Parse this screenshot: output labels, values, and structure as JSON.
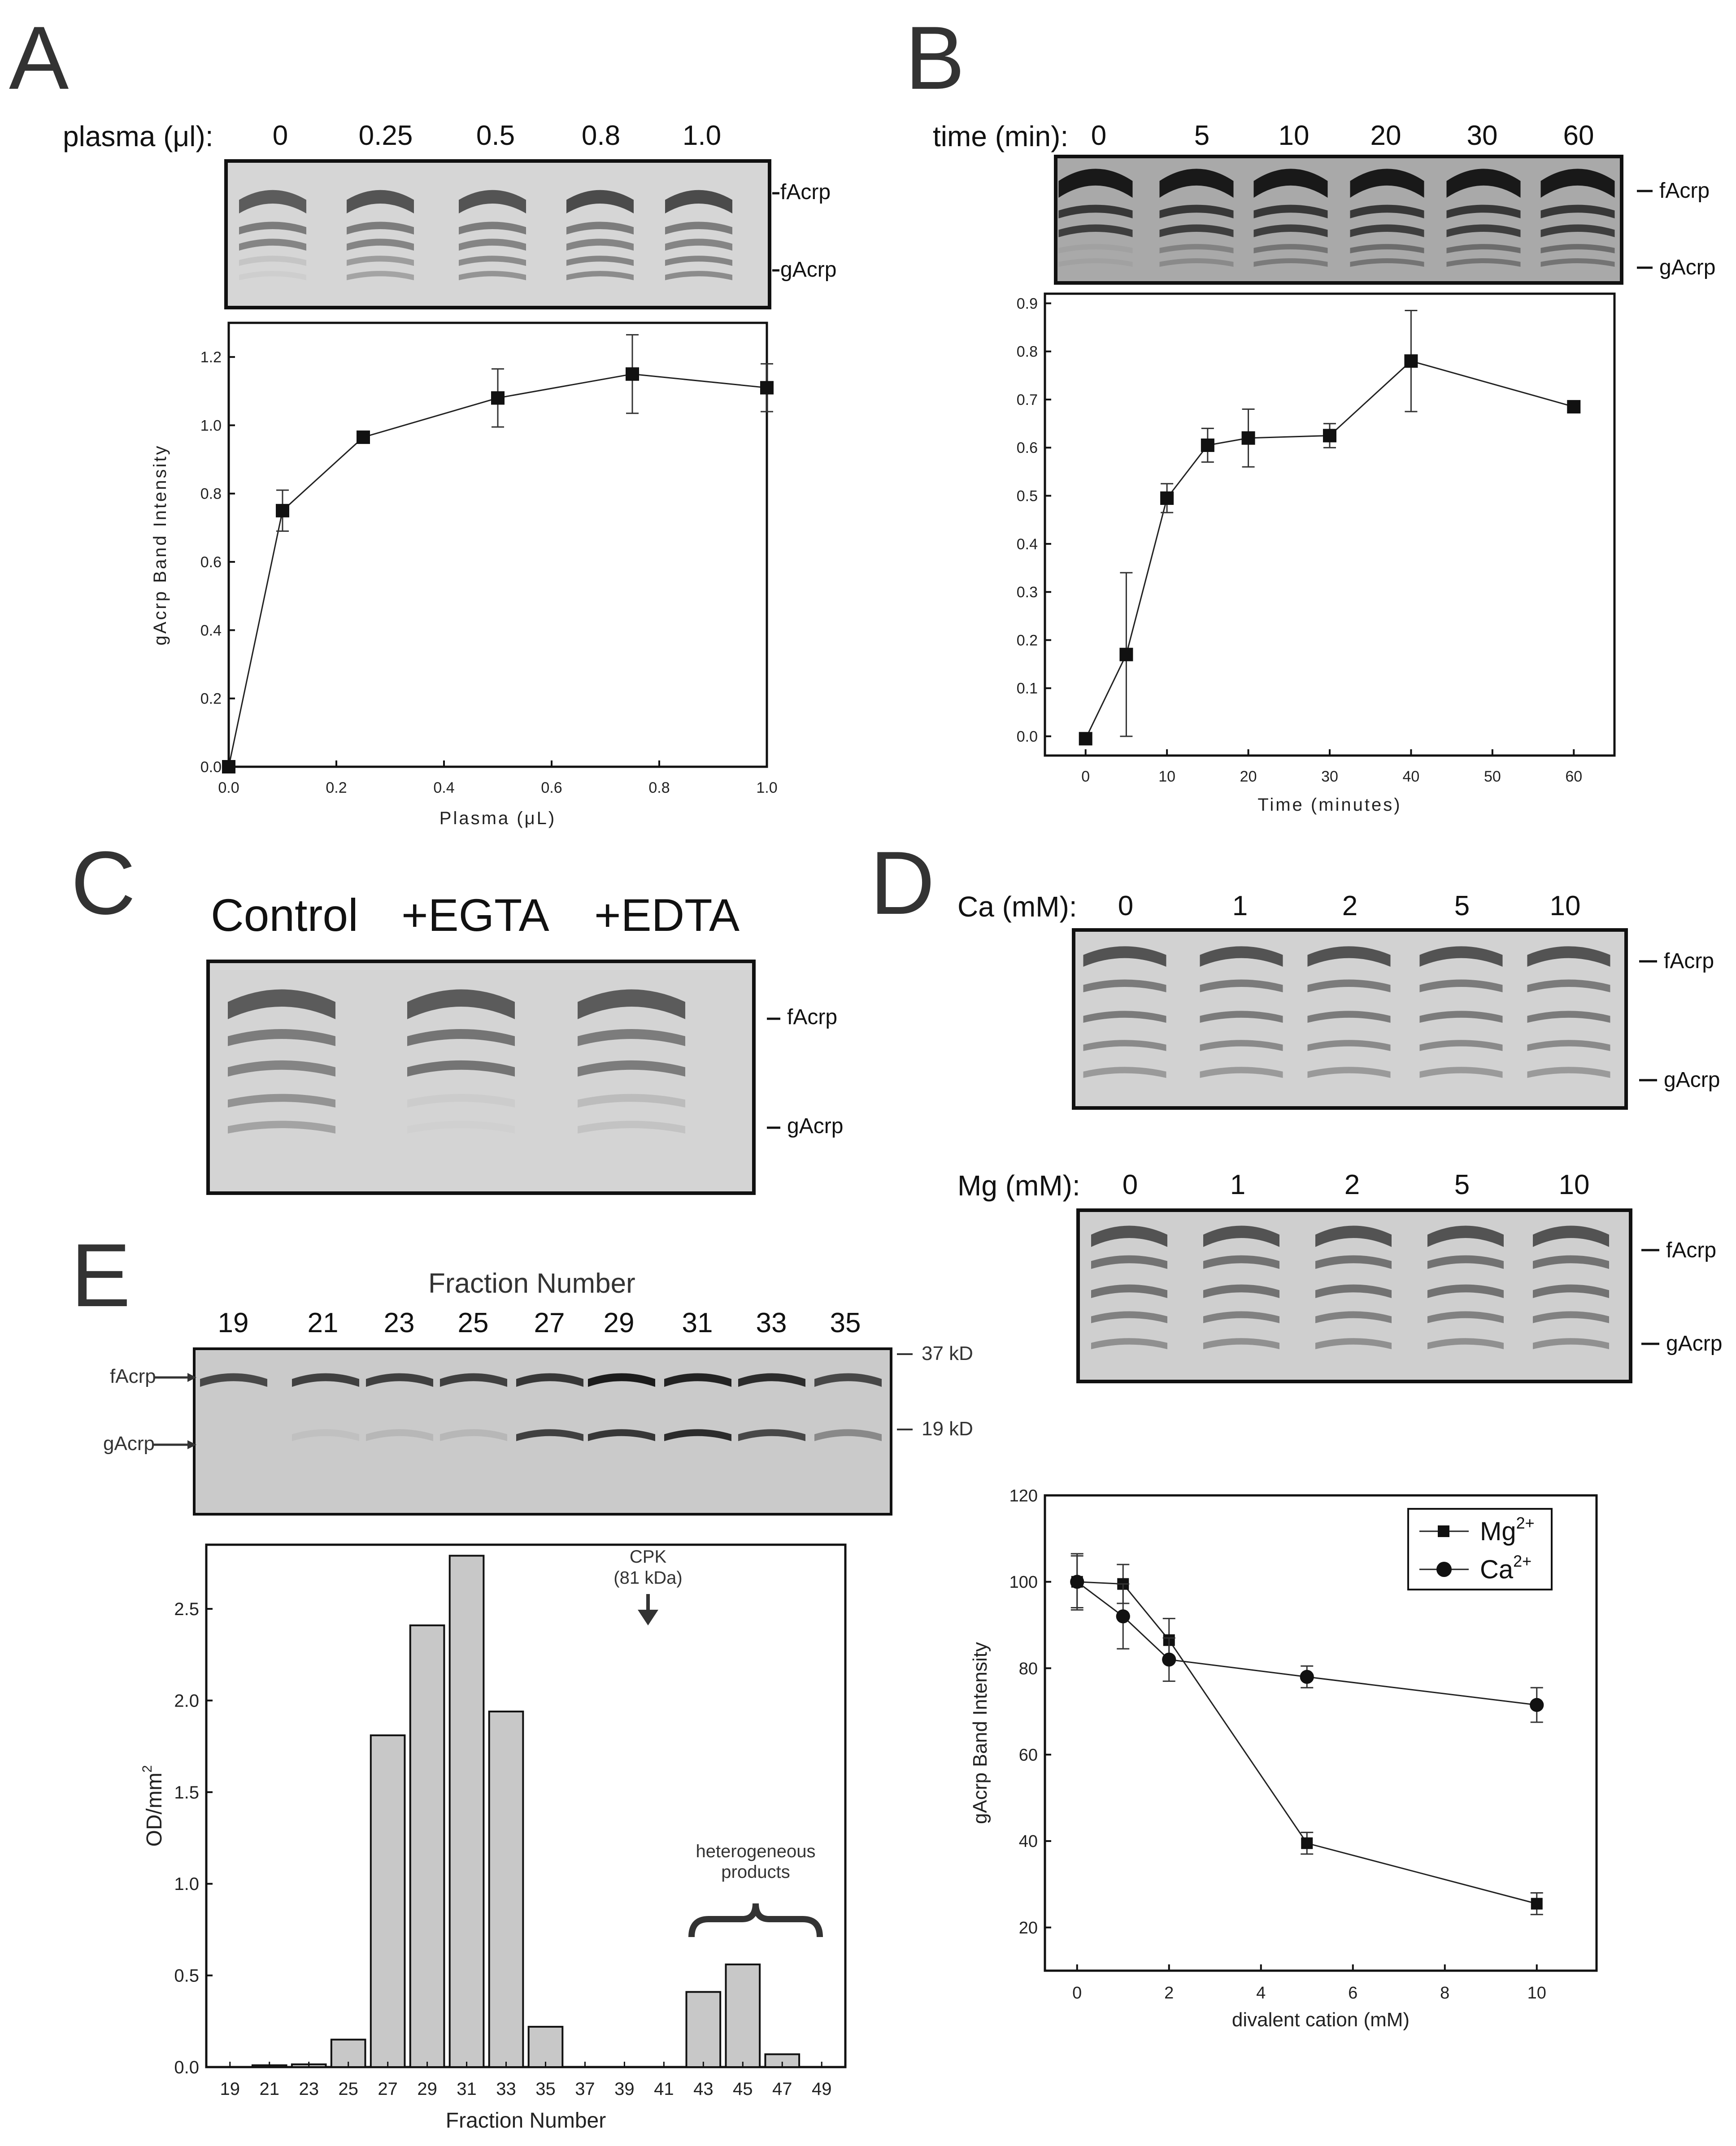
{
  "panel_a": {
    "letter": "A",
    "lane_axis_label": "plasma (μl):",
    "lanes": [
      "0",
      "0.25",
      "0.5",
      "0.8",
      "1.0"
    ],
    "band_labels": {
      "top": "fAcrp",
      "bottom": "gAcrp"
    }
  },
  "panel_b": {
    "letter": "B",
    "lane_axis_label": "time (min):",
    "lanes": [
      "0",
      "5",
      "10",
      "20",
      "30",
      "60"
    ],
    "band_labels": {
      "top": "fAcrp",
      "bottom": "gAcrp"
    }
  },
  "panel_c": {
    "letter": "C",
    "lanes": [
      "Control",
      "+EGTA",
      "+EDTA"
    ],
    "band_labels": {
      "top": "fAcrp",
      "bottom": "gAcrp"
    }
  },
  "panel_d": {
    "letter": "D",
    "ca_label": "Ca (mM):",
    "mg_label": "Mg (mM):",
    "lanes": [
      "0",
      "1",
      "2",
      "5",
      "10"
    ],
    "band_labels": {
      "top": "fAcrp",
      "bottom": "gAcrp"
    }
  },
  "panel_e": {
    "letter": "E",
    "gel_title": "Fraction Number",
    "lanes": [
      "19",
      "21",
      "23",
      "25",
      "27",
      "29",
      "31",
      "33",
      "35"
    ],
    "left_labels": {
      "top": "fAcrp",
      "bottom": "gAcrp"
    },
    "markers": [
      "37 kD",
      "19 kD"
    ],
    "annotation_cpk": "CPK",
    "annotation_cpk_mass": "(81 kDa)",
    "annotation_hetero_1": "heterogeneous",
    "annotation_hetero_2": "products"
  },
  "chart_data": [
    {
      "id": "A",
      "type": "line",
      "xlabel": "Plasma (μL)",
      "ylabel": "gAcrp Band Intensity",
      "xlim": [
        0,
        1.0
      ],
      "ylim": [
        0,
        1.3
      ],
      "xticks": [
        "0.0",
        "0.2",
        "0.4",
        "0.6",
        "0.8",
        "1.0"
      ],
      "yticks": [
        "0.0",
        "0.2",
        "0.4",
        "0.6",
        "0.8",
        "1.0",
        "1.2"
      ],
      "series": [
        {
          "x": [
            0.0,
            0.1,
            0.25,
            0.5,
            0.75,
            1.0
          ],
          "y": [
            0.0,
            0.75,
            0.965,
            1.08,
            1.15,
            1.11
          ],
          "err": [
            0,
            0.06,
            0.015,
            0.085,
            0.115,
            0.07
          ]
        }
      ]
    },
    {
      "id": "B",
      "type": "line",
      "xlabel": "Time (minutes)",
      "ylabel": "gAcrp Band Intensity",
      "xlim": [
        -5,
        65
      ],
      "ylim": [
        -0.04,
        0.92
      ],
      "xticks": [
        "0",
        "10",
        "20",
        "30",
        "40",
        "50",
        "60"
      ],
      "yticks": [
        "0.0",
        "0.1",
        "0.2",
        "0.3",
        "0.4",
        "0.5",
        "0.6",
        "0.7",
        "0.8",
        "0.9"
      ],
      "series": [
        {
          "x": [
            0,
            5,
            10,
            15,
            20,
            30,
            40,
            60
          ],
          "y": [
            -0.005,
            0.17,
            0.495,
            0.605,
            0.62,
            0.625,
            0.78,
            0.685
          ],
          "err": [
            0,
            0.17,
            0.03,
            0.035,
            0.06,
            0.025,
            0.105,
            0
          ]
        }
      ]
    },
    {
      "id": "D",
      "type": "line",
      "xlabel": "divalent cation (mM)",
      "ylabel": "gAcrp Band Intensity",
      "xlim": [
        -0.7,
        11.3
      ],
      "ylim": [
        10,
        120
      ],
      "xticks": [
        "0",
        "2",
        "4",
        "6",
        "8",
        "10"
      ],
      "yticks": [
        "20",
        "40",
        "60",
        "80",
        "100",
        "120"
      ],
      "legend_position": "top-right",
      "series": [
        {
          "name": "Mg",
          "name_sup": "2+",
          "marker": "square",
          "x": [
            0,
            1,
            2,
            5,
            10
          ],
          "y": [
            100,
            99.5,
            86.5,
            39.5,
            25.5
          ],
          "err": [
            6,
            4.5,
            5,
            2.5,
            2.5
          ]
        },
        {
          "name": "Ca",
          "name_sup": "2+",
          "marker": "circle",
          "x": [
            0,
            1,
            2,
            5,
            10
          ],
          "y": [
            100,
            92,
            82,
            78,
            71.5
          ],
          "err": [
            6.5,
            7.5,
            5,
            2.5,
            4
          ]
        }
      ]
    },
    {
      "id": "E",
      "type": "bar",
      "xlabel": "Fraction Number",
      "ylabel": "OD/mm",
      "ylabel_sup": "2",
      "ylim": [
        0,
        2.85
      ],
      "yticks": [
        "0.0",
        "0.5",
        "1.0",
        "1.5",
        "2.0",
        "2.5"
      ],
      "categories": [
        "19",
        "21",
        "23",
        "25",
        "27",
        "29",
        "31",
        "33",
        "35",
        "37",
        "39",
        "41",
        "43",
        "45",
        "47",
        "49"
      ],
      "values": [
        0,
        0.01,
        0.015,
        0.15,
        1.81,
        2.41,
        2.79,
        1.94,
        0.22,
        0,
        0,
        0,
        0.41,
        0.56,
        0.07,
        0
      ]
    }
  ]
}
